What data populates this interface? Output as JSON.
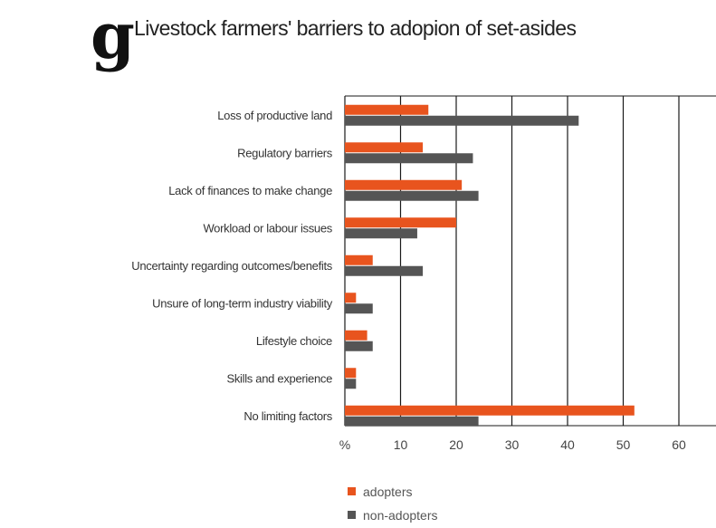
{
  "colors": {
    "adopters": "#E8541E",
    "non_adopters": "#555555",
    "grid": "#1a1a1a"
  },
  "chart_data": {
    "type": "bar",
    "orientation": "horizontal",
    "title_letter": "g",
    "title": "Livestock farmers' barriers to adopion of set-asides",
    "categories": [
      "Loss of productive land",
      "Regulatory barriers",
      "Lack of finances to make change",
      "Workload or labour issues",
      "Uncertainty regarding outcomes/benefits",
      "Unsure of long-term industry viability",
      "Lifestyle choice",
      "Skills and experience",
      "No limiting factors"
    ],
    "series": [
      {
        "name": "adopters",
        "values": [
          15,
          14,
          21,
          20,
          5,
          2,
          4,
          2,
          52
        ]
      },
      {
        "name": "non-adopters",
        "values": [
          42,
          23,
          24,
          13,
          14,
          5,
          5,
          2,
          24
        ]
      }
    ],
    "x_ticks": [
      "%",
      "10",
      "20",
      "30",
      "40",
      "50",
      "60"
    ],
    "xlim": [
      0,
      65
    ],
    "grid": true,
    "legend_position": "bottom"
  }
}
